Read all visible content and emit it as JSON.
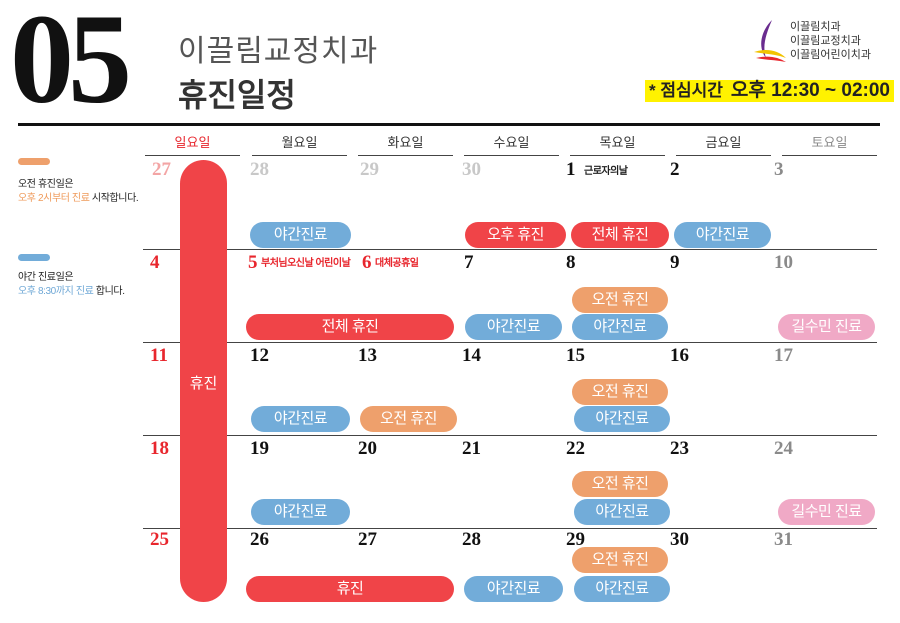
{
  "header": {
    "month": "05",
    "clinic_name": "이끌림교정치과",
    "schedule_title": "휴진일정",
    "logo_lines": [
      "이끌림치과",
      "이끌림교정치과",
      "이끌림어린이치과"
    ],
    "lunch_label": "* 점심시간",
    "lunch_time": "오후 12:30 ~ 02:00"
  },
  "legend": [
    {
      "color": "#eea06c",
      "line1": "오전 휴진일은",
      "line2_colored": "오후 2시부터 진료",
      "line2_rest": " 시작합니다."
    },
    {
      "color": "#72acd9",
      "line1": "야간 진료일은",
      "line2_colored": "오후 8:30까지 진료",
      "line2_rest": " 합니다."
    }
  ],
  "weekdays": [
    "일요일",
    "월요일",
    "화요일",
    "수요일",
    "목요일",
    "금요일",
    "토요일"
  ],
  "colors": {
    "sunday": "#e8262d",
    "saturday": "#8a8a8a",
    "full_closed": "#f04448",
    "morning_closed": "#eea06c",
    "night": "#72acd9",
    "doctor": "#f0a9c6"
  },
  "weeks": [
    [
      "27",
      "28",
      "29",
      "30",
      "1",
      "2",
      "3"
    ],
    [
      "4",
      "5",
      "6",
      "7",
      "8",
      "9",
      "10"
    ],
    [
      "11",
      "12",
      "13",
      "14",
      "15",
      "16",
      "17"
    ],
    [
      "18",
      "19",
      "20",
      "21",
      "22",
      "23",
      "24"
    ],
    [
      "25",
      "26",
      "27",
      "28",
      "29",
      "30",
      "31"
    ]
  ],
  "holidays": {
    "labor_day": "근로자의날",
    "buddha_childrens": "부처님오신날 어린이날",
    "substitute": "대체공휴일"
  },
  "events": {
    "sunday_bar": "휴진",
    "w1_mon": "야간진료",
    "w1_wed": "오후 휴진",
    "w1_thu": "전체 휴진",
    "w1_fri": "야간진료",
    "w2_thu_top": "오전 휴진",
    "w2_montue": "전체 휴진",
    "w2_wed": "야간진료",
    "w2_thu": "야간진료",
    "w2_sat": "길수민 진료",
    "w3_thu_top": "오전 휴진",
    "w3_mon": "야간진료",
    "w3_tue": "오전 휴진",
    "w3_thu": "야간진료",
    "w4_thu_top": "오전 휴진",
    "w4_mon": "야간진료",
    "w4_thu": "야간진료",
    "w4_sat": "길수민 진료",
    "w5_thu_top": "오전 휴진",
    "w5_montue": "휴진",
    "w5_wed": "야간진료",
    "w5_thu": "야간진료"
  }
}
